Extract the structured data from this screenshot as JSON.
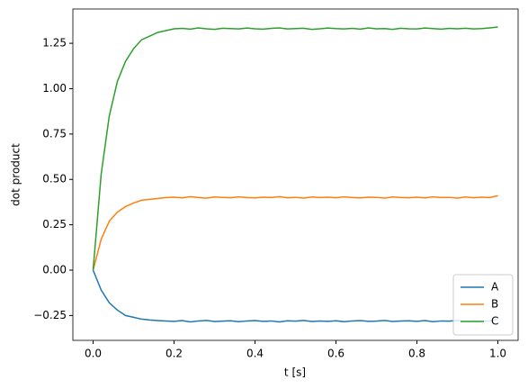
{
  "chart_data": {
    "type": "line",
    "xlabel": "t [s]",
    "ylabel": "dot product",
    "x": [
      0,
      0.02,
      0.04,
      0.06,
      0.08,
      0.1,
      0.12,
      0.14,
      0.16,
      0.18,
      0.2,
      0.22,
      0.24,
      0.26,
      0.28,
      0.3,
      0.32,
      0.34,
      0.36,
      0.38,
      0.4,
      0.42,
      0.44,
      0.46,
      0.48,
      0.5,
      0.52,
      0.54,
      0.56,
      0.58,
      0.6,
      0.62,
      0.64,
      0.66,
      0.68,
      0.7,
      0.72,
      0.74,
      0.76,
      0.78,
      0.8,
      0.82,
      0.84,
      0.86,
      0.88,
      0.9,
      0.92,
      0.94,
      0.96,
      0.98,
      1
    ],
    "series": [
      {
        "name": "A",
        "color": "#1f77b4",
        "values": [
          0,
          -0.11,
          -0.18,
          -0.22,
          -0.25,
          -0.26,
          -0.27,
          -0.275,
          -0.278,
          -0.28,
          -0.282,
          -0.278,
          -0.285,
          -0.28,
          -0.277,
          -0.283,
          -0.281,
          -0.279,
          -0.284,
          -0.28,
          -0.278,
          -0.282,
          -0.28,
          -0.285,
          -0.279,
          -0.281,
          -0.277,
          -0.283,
          -0.28,
          -0.282,
          -0.279,
          -0.284,
          -0.28,
          -0.278,
          -0.282,
          -0.281,
          -0.277,
          -0.283,
          -0.28,
          -0.279,
          -0.282,
          -0.278,
          -0.284,
          -0.28,
          -0.281,
          -0.277,
          -0.283,
          -0.279,
          -0.282,
          -0.28,
          -0.27
        ]
      },
      {
        "name": "B",
        "color": "#ff7f0e",
        "values": [
          0,
          0.17,
          0.27,
          0.32,
          0.35,
          0.37,
          0.385,
          0.39,
          0.395,
          0.4,
          0.402,
          0.398,
          0.405,
          0.4,
          0.397,
          0.403,
          0.401,
          0.399,
          0.404,
          0.4,
          0.398,
          0.402,
          0.4,
          0.405,
          0.399,
          0.401,
          0.397,
          0.403,
          0.4,
          0.402,
          0.399,
          0.404,
          0.4,
          0.398,
          0.402,
          0.401,
          0.397,
          0.403,
          0.4,
          0.399,
          0.402,
          0.398,
          0.404,
          0.4,
          0.401,
          0.397,
          0.403,
          0.399,
          0.402,
          0.4,
          0.41
        ]
      },
      {
        "name": "C",
        "color": "#2ca02c",
        "values": [
          0,
          0.53,
          0.85,
          1.04,
          1.15,
          1.22,
          1.27,
          1.29,
          1.31,
          1.32,
          1.33,
          1.332,
          1.328,
          1.335,
          1.33,
          1.327,
          1.333,
          1.331,
          1.329,
          1.334,
          1.33,
          1.328,
          1.332,
          1.335,
          1.329,
          1.331,
          1.333,
          1.327,
          1.33,
          1.334,
          1.331,
          1.329,
          1.332,
          1.328,
          1.335,
          1.33,
          1.331,
          1.327,
          1.333,
          1.33,
          1.329,
          1.334,
          1.331,
          1.328,
          1.332,
          1.33,
          1.333,
          1.329,
          1.331,
          1.335,
          1.34
        ]
      }
    ],
    "xlim": [
      -0.05,
      1.05
    ],
    "xticks": [
      {
        "value": 0,
        "label": "0.0"
      },
      0.2,
      0.4,
      0.6,
      0.8,
      {
        "value": 1,
        "label": "1.0"
      }
    ],
    "ylim": [
      -0.387,
      1.439
    ],
    "yticks": [
      {
        "value": -0.25,
        "label": "−0.25"
      },
      {
        "value": 0,
        "label": "0.00"
      },
      0.25,
      {
        "value": 0.5,
        "label": "0.50"
      },
      0.75,
      {
        "value": 1,
        "label": "1.00"
      },
      1.25
    ],
    "grid": false,
    "legend": "lower right"
  }
}
